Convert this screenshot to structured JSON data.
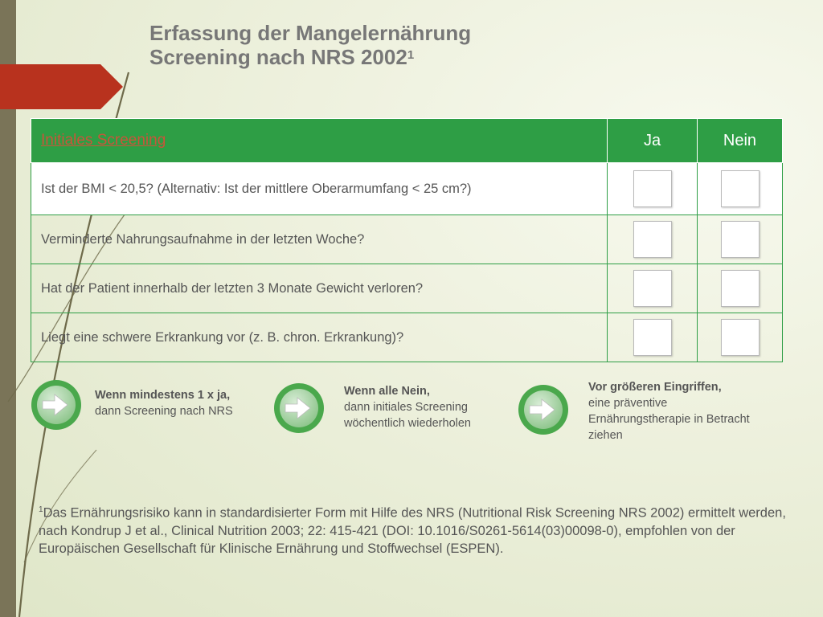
{
  "title": {
    "line1": "Erfassung der Mangelernährung",
    "line2": "Screening nach NRS 2002",
    "line2_sup": "1"
  },
  "table": {
    "header": {
      "question": "Initiales Screening",
      "yes": "Ja",
      "no": "Nein"
    },
    "rows": [
      {
        "question": "Ist der BMI < 20,5? (Alternativ: Ist der mittlere Oberarmumfang < 25 cm?)"
      },
      {
        "question": "Verminderte Nahrungsaufnahme in der letzten Woche?"
      },
      {
        "question": "Hat der Patient innerhalb der letzten 3 Monate Gewicht verloren?"
      },
      {
        "question": "Liegt eine schwere Erkrankung vor (z. B. chron. Erkrankung)?"
      }
    ]
  },
  "notes": [
    {
      "bold": "Wenn mindestens 1 x ja,",
      "text": "dann Screening nach NRS"
    },
    {
      "bold": "Wenn alle Nein,",
      "text": "dann initiales Screening wöchentlich wiederholen"
    },
    {
      "bold": "Vor größeren Eingriffen,",
      "text": "eine präventive Ernährungstherapie in Betracht ziehen"
    }
  ],
  "footnote": {
    "sup": "1",
    "text": "Das Ernährungsrisiko kann in standardisierter Form mit Hilfe des NRS (Nutritional Risk Screening NRS 2002) ermittelt werden, nach Kondrup J et al., Clinical Nutrition 2003; 22: 415-421 (DOI: 10.1016/S0261-5614(03)00098-0), empfohlen von der Europäischen Gesellschaft für Klinische Ernährung und Stoffwechsel (ESPEN)."
  },
  "colors": {
    "header_green": "#2e9e45",
    "accent_red": "#b8321e",
    "sidebar": "#7a7458",
    "text_gray": "#555555"
  },
  "icons": [
    "arrow-right-circle-icon"
  ]
}
